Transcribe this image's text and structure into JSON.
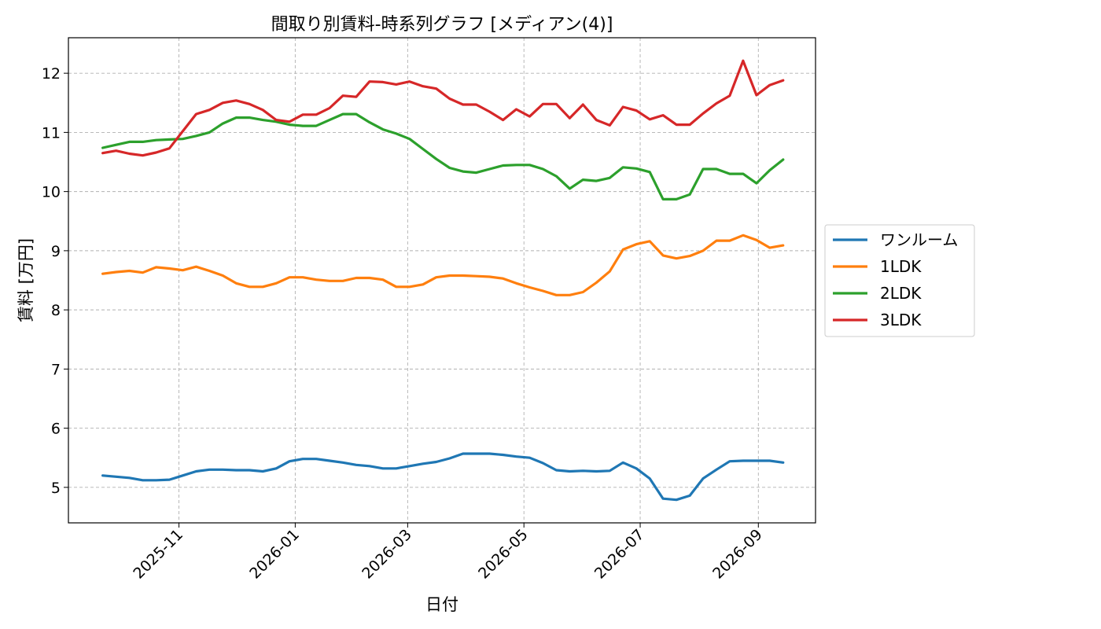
{
  "chart_data": {
    "type": "line",
    "title": "間取り別賃料-時系列グラフ [メディアン(4)]",
    "xlabel": "日付",
    "ylabel": "賃料 [万円]",
    "x_ticks": [
      "2025-11",
      "2026-01",
      "2026-03",
      "2026-05",
      "2026-07",
      "2026-09"
    ],
    "y_ticks": [
      5,
      6,
      7,
      8,
      9,
      10,
      11,
      12
    ],
    "ylim": [
      4.4,
      12.6
    ],
    "xlim": [
      "2025-09-04",
      "2026-10-01"
    ],
    "grid": true,
    "legend_position": "right",
    "x": [
      "2025-09-22",
      "2025-09-29",
      "2025-10-06",
      "2025-10-13",
      "2025-10-20",
      "2025-10-27",
      "2025-11-03",
      "2025-11-10",
      "2025-11-17",
      "2025-11-24",
      "2025-12-01",
      "2025-12-08",
      "2025-12-15",
      "2025-12-22",
      "2025-12-29",
      "2026-01-05",
      "2026-01-12",
      "2026-01-19",
      "2026-01-26",
      "2026-02-02",
      "2026-02-09",
      "2026-02-16",
      "2026-02-23",
      "2026-03-02",
      "2026-03-09",
      "2026-03-16",
      "2026-03-23",
      "2026-03-30",
      "2026-04-06",
      "2026-04-13",
      "2026-04-20",
      "2026-04-27",
      "2026-05-04",
      "2026-05-11",
      "2026-05-18",
      "2026-05-25",
      "2026-06-01",
      "2026-06-08",
      "2026-06-15",
      "2026-06-22",
      "2026-06-29",
      "2026-07-06",
      "2026-07-13",
      "2026-07-20",
      "2026-07-27",
      "2026-08-03",
      "2026-08-10",
      "2026-08-17",
      "2026-08-24",
      "2026-08-31",
      "2026-09-07",
      "2026-09-14"
    ],
    "series": [
      {
        "name": "ワンルーム",
        "color": "#1f77b4",
        "values": [
          5.2,
          5.18,
          5.16,
          5.12,
          5.12,
          5.13,
          5.2,
          5.27,
          5.3,
          5.3,
          5.29,
          5.29,
          5.27,
          5.32,
          5.44,
          5.48,
          5.48,
          5.45,
          5.42,
          5.38,
          5.36,
          5.32,
          5.32,
          5.36,
          5.4,
          5.43,
          5.49,
          5.57,
          5.57,
          5.57,
          5.55,
          5.52,
          5.5,
          5.41,
          5.29,
          5.27,
          5.28,
          5.27,
          5.28,
          5.42,
          5.32,
          5.15,
          4.81,
          4.79,
          4.86,
          5.15,
          5.3,
          5.44,
          5.45,
          5.45,
          5.45,
          5.42
        ]
      },
      {
        "name": "1LDK",
        "color": "#ff7f0e",
        "values": [
          8.61,
          8.64,
          8.66,
          8.63,
          8.72,
          8.7,
          8.67,
          8.73,
          8.66,
          8.58,
          8.45,
          8.39,
          8.39,
          8.45,
          8.55,
          8.55,
          8.51,
          8.49,
          8.49,
          8.54,
          8.54,
          8.51,
          8.39,
          8.39,
          8.43,
          8.55,
          8.58,
          8.58,
          8.57,
          8.56,
          8.53,
          8.45,
          8.38,
          8.32,
          8.25,
          8.25,
          8.3,
          8.46,
          8.65,
          9.02,
          9.11,
          9.16,
          8.92,
          8.87,
          8.91,
          9.0,
          9.17,
          9.17,
          9.26,
          9.18,
          9.05,
          9.09
        ]
      },
      {
        "name": "2LDK",
        "color": "#2ca02c",
        "values": [
          10.74,
          10.79,
          10.84,
          10.84,
          10.87,
          10.88,
          10.89,
          10.94,
          11.0,
          11.15,
          11.25,
          11.25,
          11.21,
          11.18,
          11.13,
          11.11,
          11.11,
          11.21,
          11.31,
          11.31,
          11.17,
          11.05,
          10.98,
          10.89,
          10.72,
          10.55,
          10.4,
          10.34,
          10.32,
          10.38,
          10.44,
          10.45,
          10.45,
          10.38,
          10.26,
          10.05,
          10.2,
          10.18,
          10.23,
          10.41,
          10.39,
          10.33,
          9.87,
          9.87,
          9.95,
          10.38,
          10.38,
          10.3,
          10.3,
          10.14,
          10.36,
          10.54
        ]
      },
      {
        "name": "3LDK",
        "color": "#d62728",
        "values": [
          10.65,
          10.69,
          10.64,
          10.61,
          10.66,
          10.73,
          11.02,
          11.31,
          11.38,
          11.5,
          11.54,
          11.48,
          11.38,
          11.21,
          11.18,
          11.3,
          11.3,
          11.41,
          11.62,
          11.6,
          11.86,
          11.85,
          11.81,
          11.86,
          11.78,
          11.74,
          11.57,
          11.47,
          11.47,
          11.35,
          11.21,
          11.39,
          11.27,
          11.48,
          11.48,
          11.24,
          11.47,
          11.21,
          11.12,
          11.43,
          11.37,
          11.22,
          11.29,
          11.13,
          11.13,
          11.32,
          11.49,
          11.62,
          12.21,
          11.63,
          11.8,
          11.88
        ]
      }
    ]
  }
}
